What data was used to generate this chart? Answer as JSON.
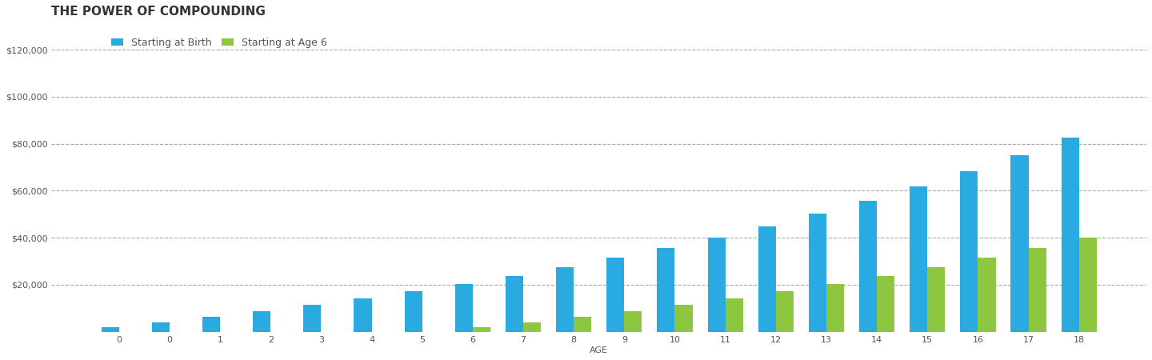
{
  "title": "THE POWER OF COMPOUNDING",
  "legend_birth": "Starting at Birth",
  "legend_age6": "Starting at Age 6",
  "xlabel": "AGE",
  "ages": [
    0,
    0,
    1,
    2,
    3,
    4,
    5,
    6,
    7,
    8,
    9,
    10,
    11,
    12,
    13,
    14,
    15,
    16,
    17,
    18
  ],
  "x_labels": [
    "0",
    "0",
    "1",
    "2",
    "3",
    "4",
    "5",
    "6",
    "7",
    "8",
    "9",
    "10",
    "11",
    "12",
    "13",
    "14",
    "15",
    "16",
    "17",
    "18"
  ],
  "birth_values": [
    2000,
    4140,
    6430,
    8880,
    11500,
    14300,
    17300,
    20500,
    23900,
    27600,
    31500,
    35700,
    40200,
    45000,
    50200,
    55800,
    61800,
    68300,
    75300,
    82700
  ],
  "age6_values": [
    0,
    0,
    0,
    0,
    0,
    0,
    0,
    2000,
    4140,
    6430,
    8880,
    11500,
    14300,
    17300,
    20500,
    23900,
    27600,
    31500,
    35700,
    40200
  ],
  "color_birth": "#29ABE2",
  "color_age6": "#8DC63F",
  "background_color": "#FFFFFF",
  "ylim": [
    0,
    130000
  ],
  "yticks": [
    20000,
    40000,
    60000,
    80000,
    100000,
    120000
  ],
  "ytick_labels": [
    "$20,000",
    "$40,000",
    "$60,000",
    "$80,000",
    "$100,000",
    "$120,000"
  ],
  "title_fontsize": 11,
  "legend_fontsize": 9,
  "tick_fontsize": 8,
  "grid_color": "#AAAAAA",
  "bar_width": 0.35
}
